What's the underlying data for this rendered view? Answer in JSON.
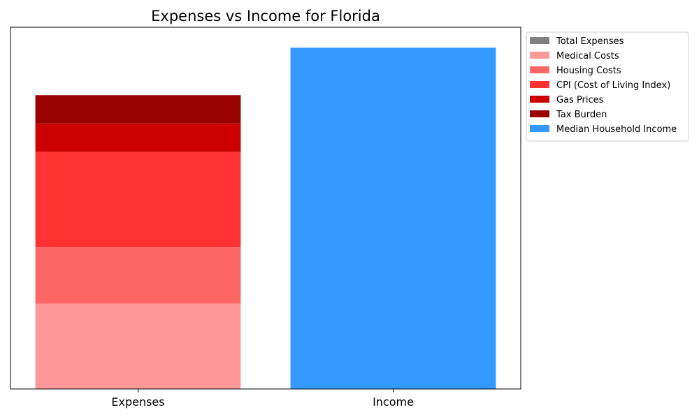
{
  "chart_data": {
    "type": "bar",
    "title": "Expenses vs Income for Florida",
    "xlabel": "",
    "ylabel": "",
    "categories": [
      "Expenses",
      "Income"
    ],
    "ylim": [
      0,
      1.06
    ],
    "grid": false,
    "legend_position": "outside-top-right",
    "stacked_bar": {
      "category": "Expenses",
      "segments": [
        {
          "name": "Medical Costs",
          "value": 0.25,
          "color": "#ff9999"
        },
        {
          "name": "Housing Costs",
          "value": 0.165,
          "color": "#ff6666"
        },
        {
          "name": "CPI (Cost of Living Index)",
          "value": 0.28,
          "color": "#ff3333"
        },
        {
          "name": "Gas Prices",
          "value": 0.083,
          "color": "#cc0000"
        },
        {
          "name": "Tax Burden",
          "value": 0.083,
          "color": "#990000"
        }
      ]
    },
    "single_bar": {
      "category": "Income",
      "name": "Median Household Income",
      "value": 1.0,
      "color": "#3399ff"
    },
    "legend": [
      {
        "name": "Total Expenses",
        "color": "#808080"
      },
      {
        "name": "Medical Costs",
        "color": "#ff9999"
      },
      {
        "name": "Housing Costs",
        "color": "#ff6666"
      },
      {
        "name": "CPI (Cost of Living Index)",
        "color": "#ff3333"
      },
      {
        "name": "Gas Prices",
        "color": "#cc0000"
      },
      {
        "name": "Tax Burden",
        "color": "#990000"
      },
      {
        "name": "Median Household Income",
        "color": "#3399ff"
      }
    ]
  }
}
